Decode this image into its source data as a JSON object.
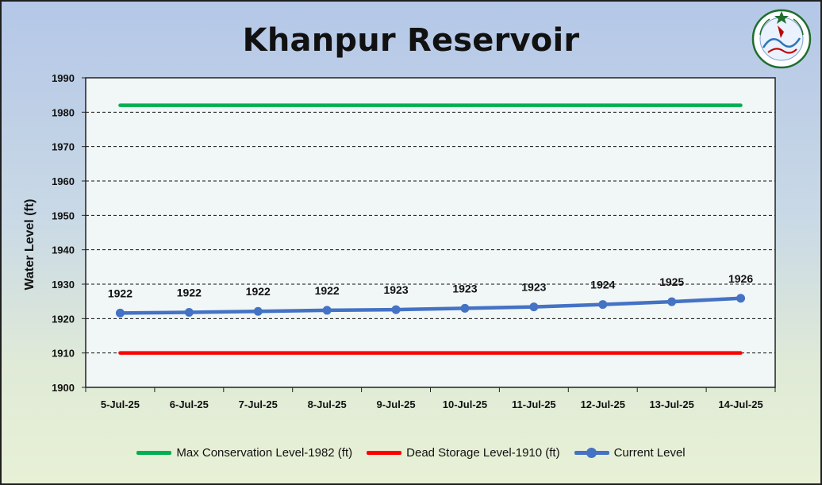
{
  "chart_data": {
    "type": "line",
    "title": "Khanpur Reservoir",
    "ylabel": "Water Level (ft)",
    "xlabel": "",
    "ylim": [
      1900,
      1990
    ],
    "yticks": [
      1900,
      1910,
      1920,
      1930,
      1940,
      1950,
      1960,
      1970,
      1980,
      1990
    ],
    "categories": [
      "5-Jul-25",
      "6-Jul-25",
      "7-Jul-25",
      "8-Jul-25",
      "9-Jul-25",
      "10-Jul-25",
      "11-Jul-25",
      "12-Jul-25",
      "13-Jul-25",
      "14-Jul-25"
    ],
    "grid": "horizontal-dashed",
    "legend_position": "bottom",
    "series": [
      {
        "name": "Max Conservation Level-1982 (ft)",
        "color": "#00b050",
        "values": [
          1982,
          1982,
          1982,
          1982,
          1982,
          1982,
          1982,
          1982,
          1982,
          1982
        ]
      },
      {
        "name": "Dead Storage Level-1910 (ft)",
        "color": "#ff0000",
        "values": [
          1910,
          1910,
          1910,
          1910,
          1910,
          1910,
          1910,
          1910,
          1910,
          1910
        ]
      },
      {
        "name": "Current Level",
        "color": "#4472c4",
        "markers": true,
        "values": [
          1921.6,
          1921.8,
          1922.1,
          1922.4,
          1922.6,
          1923.0,
          1923.4,
          1924.1,
          1924.9,
          1925.9
        ],
        "data_labels": [
          "1922",
          "1922",
          "1922",
          "1922",
          "1923",
          "1923",
          "1923",
          "1924",
          "1925",
          "1926"
        ]
      }
    ]
  },
  "logo": {
    "icon": "pakistan-meteorological-department-seal",
    "text": "PAKISTAN METEOROLOGICAL DEPARTMENT"
  }
}
